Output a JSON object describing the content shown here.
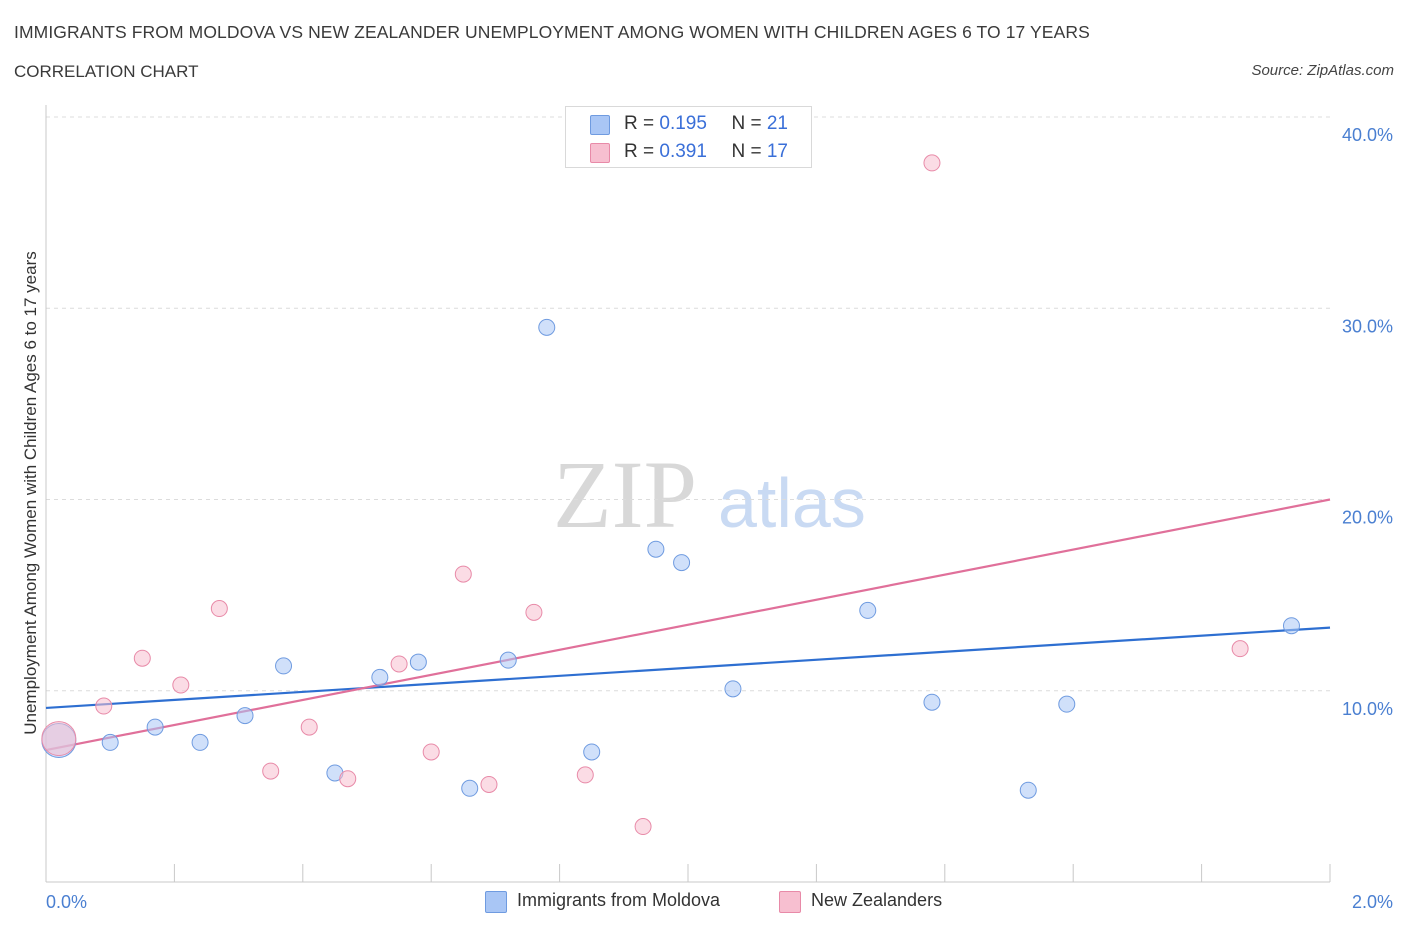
{
  "title": "IMMIGRANTS FROM MOLDOVA VS NEW ZEALANDER UNEMPLOYMENT AMONG WOMEN WITH CHILDREN AGES 6 TO 17 YEARS",
  "subtitle": "CORRELATION CHART",
  "source": "Source: ZipAtlas.com",
  "watermark": {
    "zip": "ZIP",
    "atlas": "atlas"
  },
  "legend_top": [
    {
      "r_label": "R = ",
      "r_value": "0.195",
      "n_label": "N = ",
      "n_value": "21",
      "color": "#a9c6f5",
      "border": "#6f9be0"
    },
    {
      "r_label": "R = ",
      "r_value": "0.391",
      "n_label": "N = ",
      "n_value": "17",
      "color": "#f7bfd0",
      "border": "#e88aa8"
    }
  ],
  "legend_bottom": [
    {
      "label": "Immigrants from Moldova",
      "color": "#a9c6f5",
      "border": "#6f9be0"
    },
    {
      "label": "New Zealanders",
      "color": "#f7bfd0",
      "border": "#e88aa8"
    }
  ],
  "chart_data": {
    "type": "scatter",
    "title": "IMMIGRANTS FROM MOLDOVA VS NEW ZEALANDER UNEMPLOYMENT AMONG WOMEN WITH CHILDREN AGES 6 TO 17 YEARS",
    "ylabel": "Unemployment Among Women with Children Ages 6 to 17 years",
    "xlabel": "",
    "xlim": [
      0,
      2.0
    ],
    "ylim": [
      0,
      40
    ],
    "x_ticks": [
      "0.0%",
      "2.0%"
    ],
    "y_ticks": [
      {
        "value": 10,
        "label": "10.0%"
      },
      {
        "value": 20,
        "label": "20.0%"
      },
      {
        "value": 30,
        "label": "30.0%"
      },
      {
        "value": 40,
        "label": "40.0%"
      }
    ],
    "grid": true,
    "series": [
      {
        "name": "Immigrants from Moldova",
        "color": "#a9c6f5",
        "stroke": "#6f9be0",
        "line_color": "#2e6fd1",
        "trend": {
          "x": [
            0,
            2.0
          ],
          "y": [
            9.1,
            13.3
          ]
        },
        "points": [
          {
            "x": 0.02,
            "y": 7.4,
            "big": true
          },
          {
            "x": 0.1,
            "y": 7.3
          },
          {
            "x": 0.17,
            "y": 8.1
          },
          {
            "x": 0.24,
            "y": 7.3
          },
          {
            "x": 0.31,
            "y": 8.7
          },
          {
            "x": 0.37,
            "y": 11.3
          },
          {
            "x": 0.45,
            "y": 5.7
          },
          {
            "x": 0.52,
            "y": 10.7
          },
          {
            "x": 0.58,
            "y": 11.5
          },
          {
            "x": 0.66,
            "y": 4.9
          },
          {
            "x": 0.72,
            "y": 11.6
          },
          {
            "x": 0.78,
            "y": 29.0
          },
          {
            "x": 0.85,
            "y": 6.8
          },
          {
            "x": 0.95,
            "y": 17.4
          },
          {
            "x": 0.99,
            "y": 16.7
          },
          {
            "x": 1.07,
            "y": 10.1
          },
          {
            "x": 1.28,
            "y": 14.2
          },
          {
            "x": 1.38,
            "y": 9.4
          },
          {
            "x": 1.53,
            "y": 4.8
          },
          {
            "x": 1.59,
            "y": 9.3
          },
          {
            "x": 1.94,
            "y": 13.4
          }
        ]
      },
      {
        "name": "New Zealanders",
        "color": "#f7bfd0",
        "stroke": "#e88aa8",
        "line_color": "#e0709a",
        "trend": {
          "x": [
            0,
            2.0
          ],
          "y": [
            6.9,
            20.0
          ]
        },
        "points": [
          {
            "x": 0.02,
            "y": 7.5,
            "big": true
          },
          {
            "x": 0.09,
            "y": 9.2
          },
          {
            "x": 0.15,
            "y": 11.7
          },
          {
            "x": 0.21,
            "y": 10.3
          },
          {
            "x": 0.27,
            "y": 14.3
          },
          {
            "x": 0.35,
            "y": 5.8
          },
          {
            "x": 0.41,
            "y": 8.1
          },
          {
            "x": 0.47,
            "y": 5.4
          },
          {
            "x": 0.55,
            "y": 11.4
          },
          {
            "x": 0.6,
            "y": 6.8
          },
          {
            "x": 0.65,
            "y": 16.1
          },
          {
            "x": 0.69,
            "y": 5.1
          },
          {
            "x": 0.76,
            "y": 14.1
          },
          {
            "x": 0.84,
            "y": 5.6
          },
          {
            "x": 0.93,
            "y": 2.9
          },
          {
            "x": 1.38,
            "y": 37.6
          },
          {
            "x": 1.86,
            "y": 12.2
          }
        ]
      }
    ]
  }
}
